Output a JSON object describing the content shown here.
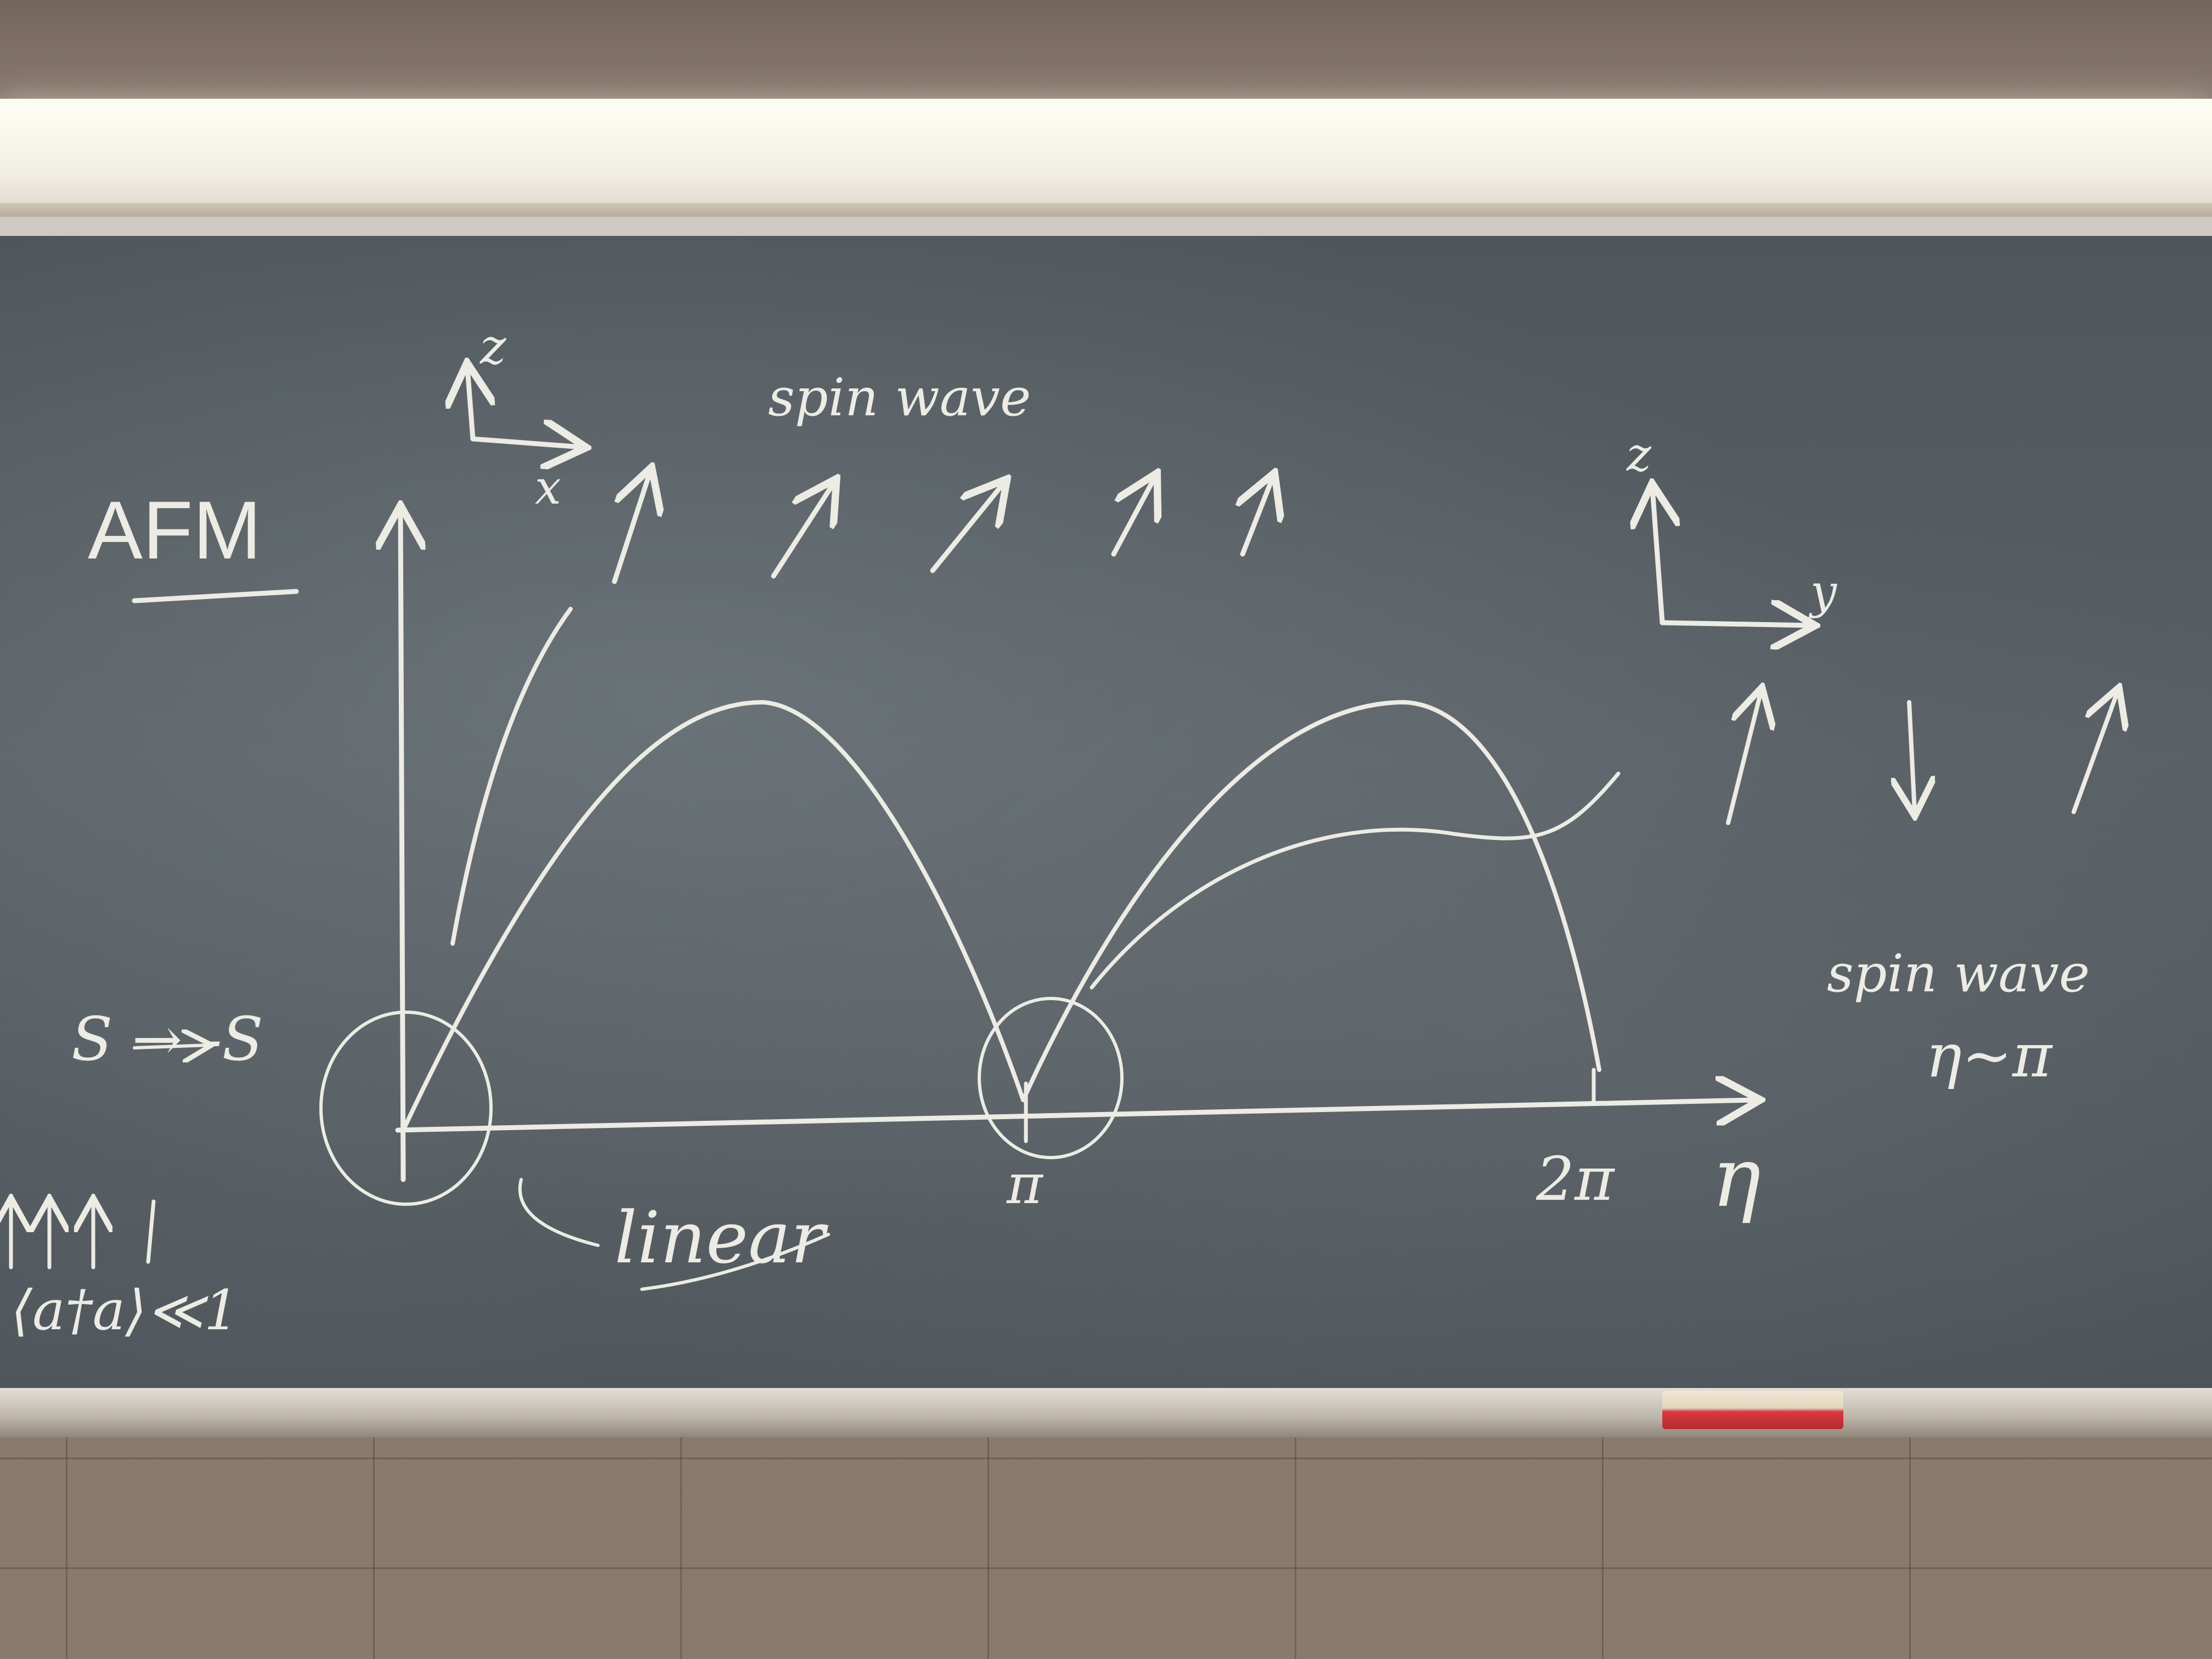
{
  "board": {
    "title": "AFM",
    "spin_wave_top": "spin wave",
    "axis_z_left": "z",
    "axis_x_left": "x",
    "axis_z_right": "z",
    "axis_y_right": "y",
    "s_relation": "S → -S",
    "tick_pi": "π",
    "tick_2pi": "2π",
    "axis_eta": "η",
    "linear_label": "linear",
    "spin_wave_right": "spin wave",
    "eta_near_pi": "η~π",
    "operator_bound": "⟨a†a⟩≪1"
  },
  "colors": {
    "chalk": "#ecebe4",
    "board": "#545c61",
    "eraser_felt": "#b42a30"
  }
}
